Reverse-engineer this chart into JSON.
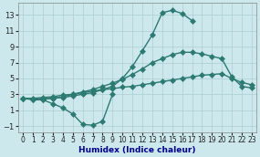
{
  "x": [
    0,
    1,
    2,
    3,
    4,
    5,
    6,
    7,
    8,
    9,
    10,
    11,
    12,
    13,
    14,
    15,
    16,
    17,
    18,
    19,
    20,
    21,
    22,
    23
  ],
  "line_peak": [
    2.5,
    2.4,
    2.4,
    2.5,
    2.6,
    2.8,
    3.0,
    3.2,
    3.6,
    4.0,
    5.0,
    6.5,
    8.5,
    10.5,
    13.3,
    13.6,
    13.2,
    12.3,
    null,
    null,
    null,
    null,
    null,
    null
  ],
  "line_mid": [
    2.5,
    2.4,
    2.4,
    2.5,
    2.7,
    3.0,
    3.3,
    3.6,
    4.0,
    4.4,
    4.9,
    5.5,
    6.2,
    7.0,
    7.5,
    8.0,
    8.3,
    8.3,
    8.1,
    7.8,
    7.5,
    5.2,
    4.0,
    3.8
  ],
  "line_flat": [
    2.5,
    2.5,
    2.6,
    2.7,
    2.9,
    3.0,
    3.2,
    3.4,
    3.6,
    3.7,
    3.9,
    4.0,
    4.2,
    4.4,
    4.6,
    4.8,
    5.0,
    5.2,
    5.4,
    5.5,
    5.6,
    5.0,
    4.5,
    4.2
  ],
  "line_dip": [
    2.5,
    2.3,
    2.3,
    1.8,
    1.3,
    0.5,
    -0.8,
    -0.9,
    -0.4,
    3.0,
    null,
    null,
    null,
    null,
    null,
    null,
    null,
    null,
    null,
    null,
    null,
    null,
    null,
    null
  ],
  "background_color": "#cce8ec",
  "grid_color": "#aacdd3",
  "line_color": "#2d7a72",
  "yticks": [
    -1,
    1,
    3,
    5,
    7,
    9,
    11,
    13
  ],
  "xticks": [
    0,
    1,
    2,
    3,
    4,
    5,
    6,
    7,
    8,
    9,
    10,
    11,
    12,
    13,
    14,
    15,
    16,
    17,
    18,
    19,
    20,
    21,
    22,
    23
  ],
  "xlabel": "Humidex (Indice chaleur)",
  "ylim": [
    -1.8,
    14.5
  ],
  "xlim": [
    -0.5,
    23.5
  ],
  "xlabel_color": "#00008b",
  "xlabel_fontsize": 6.5,
  "tick_fontsize": 5.5,
  "linewidth": 1.0,
  "markersize": 3.0
}
